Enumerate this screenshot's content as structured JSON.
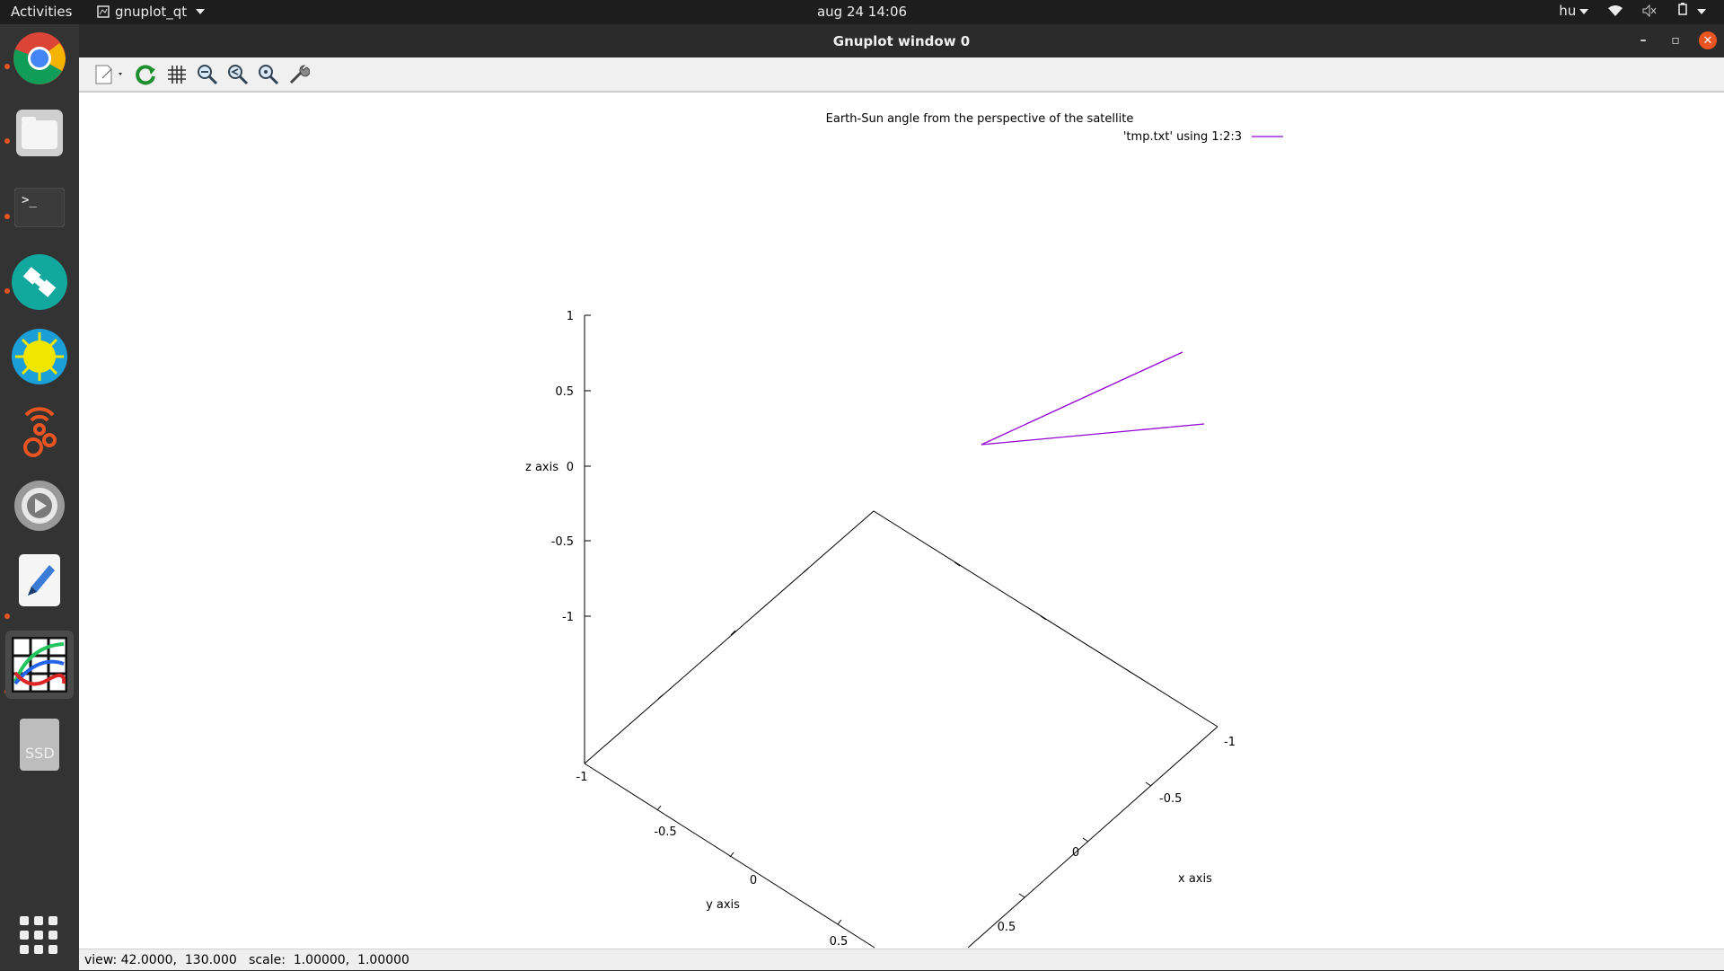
{
  "topbar": {
    "activities": "Activities",
    "app_name": "gnuplot_qt",
    "clock": "aug 24  14:06",
    "keyboard_layout": "hu"
  },
  "dock": {
    "items": [
      {
        "name": "chrome-icon",
        "running": true
      },
      {
        "name": "files-icon",
        "running": true
      },
      {
        "name": "terminal-icon",
        "running": true
      },
      {
        "name": "satellite-app-icon",
        "running": true
      },
      {
        "name": "sun-app-icon",
        "running": false
      },
      {
        "name": "podcast-app-icon",
        "running": false
      },
      {
        "name": "settings-app-icon",
        "running": false
      },
      {
        "name": "text-editor-icon",
        "running": true
      },
      {
        "name": "gnuplot-icon",
        "running": true
      },
      {
        "name": "ssd-drive-icon",
        "running": false
      }
    ],
    "ssd_label": "SSD"
  },
  "window": {
    "title": "Gnuplot window 0"
  },
  "toolbar": {
    "buttons": [
      "export-icon",
      "replot-icon",
      "grid-icon",
      "zoom-out-icon",
      "zoom-prev-icon",
      "zoom-next-icon",
      "settings-wrench-icon"
    ]
  },
  "plot": {
    "title": "Earth-Sun angle from the perspective of the satellite",
    "legend_label": "'tmp.txt' using 1:2:3",
    "line_color": "#9400d3",
    "xlabel": "x axis",
    "ylabel": "y axis",
    "zlabel": "z axis",
    "z_ticks": [
      "1",
      "0.5",
      "0",
      "-0.5",
      "-1"
    ],
    "x_ticks": [
      "-1",
      "-0.5",
      "0",
      "0.5"
    ],
    "y_ticks": [
      "-1",
      "-0.5",
      "0",
      "0.5"
    ]
  },
  "statusbar": {
    "text": "view: 42.0000,  130.000   scale:  1.00000,  1.00000"
  }
}
